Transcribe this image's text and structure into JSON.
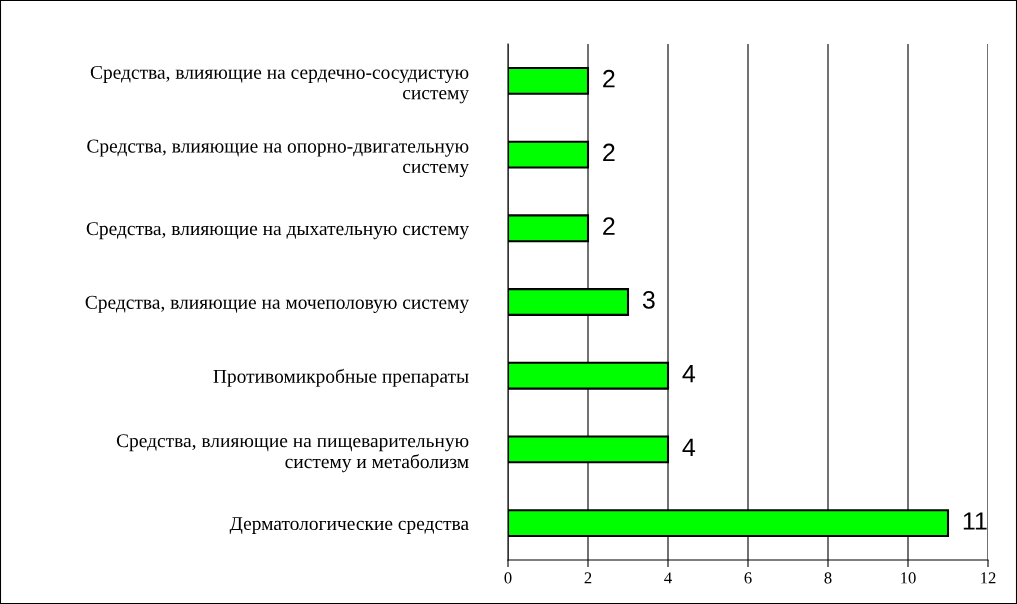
{
  "chart_data": {
    "type": "bar",
    "orientation": "horizontal",
    "categories": [
      "Средства, влияющие на сердечно-сосудистую\nсистему",
      "Средства, влияющие на опорно-двигательную\nсистему",
      "Средства, влияющие на дыхательную систему",
      "Средства, влияющие на мочеполовую систему",
      "Противомикробные препараты",
      "Средства, влияющие на пищеварительную\nсистему и метаболизм",
      "Дерматологические средства"
    ],
    "values": [
      2,
      2,
      2,
      3,
      4,
      4,
      11
    ],
    "color": "#00ff00",
    "xlim": [
      0,
      12
    ],
    "xticks": [
      0,
      2,
      4,
      6,
      8,
      10,
      12
    ],
    "grid": "x",
    "data_labels": true
  }
}
